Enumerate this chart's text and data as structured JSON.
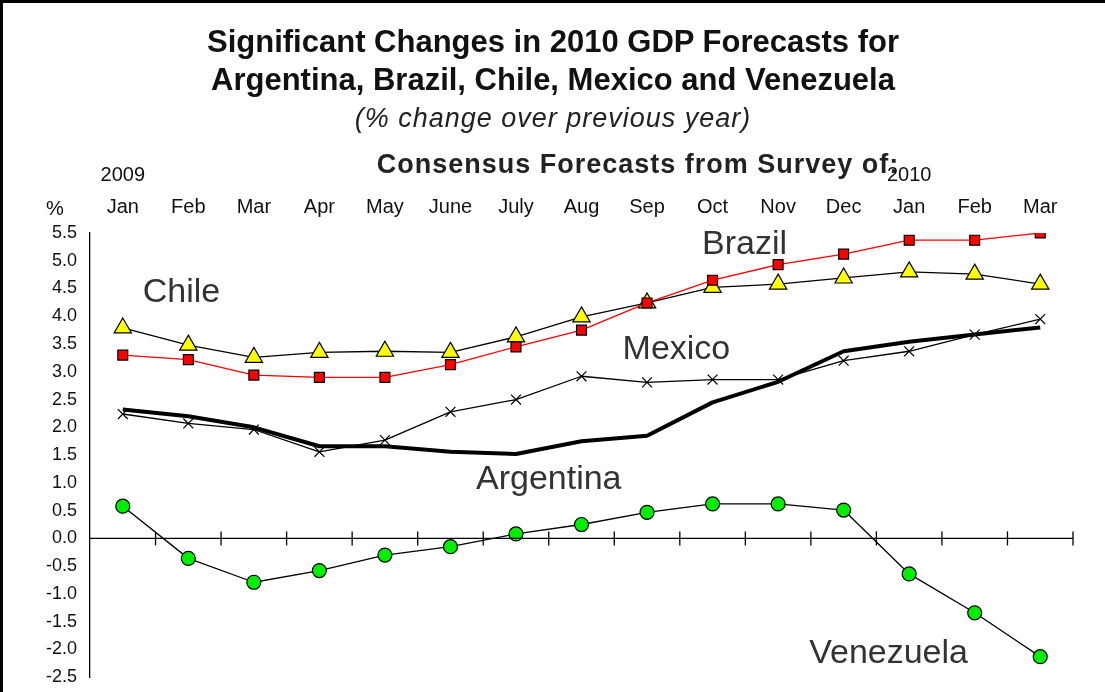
{
  "chart_data": {
    "type": "line",
    "title": "Significant Changes in 2010 GDP Forecasts for\nArgentina, Brazil, Chile, Mexico and Venezuela",
    "subtitle": "(% change over previous year)",
    "xlabel": "Consensus Forecasts from Survey of:",
    "ylabel": "%",
    "categories": [
      "Jan",
      "Feb",
      "Mar",
      "Apr",
      "May",
      "June",
      "July",
      "Aug",
      "Sep",
      "Oct",
      "Nov",
      "Dec",
      "Jan",
      "Feb",
      "Mar"
    ],
    "series": [
      {
        "name": "Brazil",
        "color": "#ff0000",
        "marker": "square",
        "values": [
          3.3,
          3.22,
          2.94,
          2.9,
          2.9,
          3.13,
          3.45,
          3.75,
          4.24,
          4.65,
          4.93,
          5.12,
          5.37,
          5.37,
          5.5
        ]
      },
      {
        "name": "Chile",
        "color": "#ffff00",
        "marker": "triangle",
        "values": [
          3.79,
          3.48,
          3.26,
          3.35,
          3.37,
          3.35,
          3.63,
          3.99,
          4.24,
          4.52,
          4.58,
          4.69,
          4.8,
          4.76,
          4.58
        ]
      },
      {
        "name": "Mexico",
        "color": "#000000",
        "marker": "cross",
        "values": [
          2.24,
          2.07,
          1.96,
          1.56,
          1.77,
          2.28,
          2.5,
          2.92,
          2.81,
          2.86,
          2.86,
          3.2,
          3.37,
          3.67,
          3.95
        ]
      },
      {
        "name": "Argentina",
        "color": "#000000",
        "marker": "none",
        "values": [
          2.32,
          2.2,
          2.0,
          1.66,
          1.66,
          1.56,
          1.52,
          1.75,
          1.85,
          2.45,
          2.82,
          3.37,
          3.54,
          3.67,
          3.8
        ]
      },
      {
        "name": "Venezuela",
        "color": "#00ee00",
        "marker": "circle",
        "values": [
          0.58,
          -0.36,
          -0.79,
          -0.58,
          -0.3,
          -0.15,
          0.08,
          0.25,
          0.47,
          0.62,
          0.62,
          0.51,
          -0.64,
          -1.34,
          -2.13
        ]
      }
    ],
    "annotations": [
      "2009",
      "2010"
    ],
    "ref_lines": [
      {
        "axis": "y",
        "value": 0
      }
    ],
    "ylim": [
      -2.5,
      5.5
    ],
    "yticks": [
      {
        "value": -2.5,
        "label": "-2.5"
      },
      {
        "value": -2,
        "label": "-2.0"
      },
      {
        "value": -1.5,
        "label": "-1.5"
      },
      {
        "value": -1,
        "label": "-1.0"
      },
      {
        "value": -0.5,
        "label": "-0.5"
      },
      {
        "value": 0,
        "label": "0.0"
      },
      {
        "value": 0.5,
        "label": "0.5"
      },
      {
        "value": 1,
        "label": "1.0"
      },
      {
        "value": 1.5,
        "label": "1.5"
      },
      {
        "value": 2,
        "label": "2.0"
      },
      {
        "value": 2.5,
        "label": "2.5"
      },
      {
        "value": 3,
        "label": "3.0"
      },
      {
        "value": 3.5,
        "label": "3.5"
      },
      {
        "value": 4,
        "label": "4.0"
      },
      {
        "value": 4.5,
        "label": "4.5"
      },
      {
        "value": 5,
        "label": "5.0"
      },
      {
        "value": 5.5,
        "label": "5.5"
      }
    ],
    "grid": false,
    "legend": false,
    "line_style": "solid"
  }
}
